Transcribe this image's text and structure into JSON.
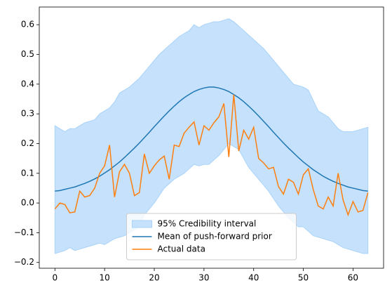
{
  "chart_data": {
    "type": "line",
    "x": [
      0,
      1,
      2,
      3,
      4,
      5,
      6,
      7,
      8,
      9,
      10,
      11,
      12,
      13,
      14,
      15,
      16,
      17,
      18,
      19,
      20,
      21,
      22,
      23,
      24,
      25,
      26,
      27,
      28,
      29,
      30,
      31,
      32,
      33,
      34,
      35,
      36,
      37,
      38,
      39,
      40,
      41,
      42,
      43,
      44,
      45,
      46,
      47,
      48,
      49,
      50,
      51,
      52,
      53,
      54,
      55,
      56,
      57,
      58,
      59,
      60,
      61,
      62,
      63
    ],
    "band": {
      "name": "95% Credibility interval",
      "color": "#c5e1fb",
      "edge_color": "#a9d3fa",
      "upper": [
        0.26,
        0.25,
        0.24,
        0.25,
        0.25,
        0.26,
        0.27,
        0.275,
        0.28,
        0.3,
        0.31,
        0.32,
        0.34,
        0.37,
        0.38,
        0.39,
        0.405,
        0.42,
        0.44,
        0.46,
        0.48,
        0.5,
        0.515,
        0.53,
        0.545,
        0.56,
        0.57,
        0.58,
        0.6,
        0.59,
        0.6,
        0.605,
        0.61,
        0.61,
        0.615,
        0.62,
        0.61,
        0.595,
        0.58,
        0.565,
        0.55,
        0.535,
        0.52,
        0.5,
        0.48,
        0.46,
        0.44,
        0.42,
        0.4,
        0.395,
        0.39,
        0.38,
        0.345,
        0.31,
        0.3,
        0.29,
        0.27,
        0.25,
        0.24,
        0.24,
        0.24,
        0.245,
        0.25,
        0.255
      ],
      "lower": [
        -0.17,
        -0.165,
        -0.16,
        -0.15,
        -0.16,
        -0.155,
        -0.15,
        -0.145,
        -0.14,
        -0.135,
        -0.14,
        -0.13,
        -0.12,
        -0.115,
        -0.11,
        -0.1,
        -0.09,
        -0.08,
        -0.04,
        -0.02,
        0.0,
        0.025,
        0.05,
        0.065,
        0.08,
        0.09,
        0.1,
        0.115,
        0.13,
        0.125,
        0.13,
        0.13,
        0.145,
        0.16,
        0.18,
        0.2,
        0.19,
        0.18,
        0.15,
        0.12,
        0.1,
        0.08,
        0.06,
        0.04,
        0.015,
        -0.01,
        -0.03,
        -0.05,
        -0.065,
        -0.08,
        -0.08,
        -0.095,
        -0.11,
        -0.115,
        -0.12,
        -0.125,
        -0.13,
        -0.14,
        -0.15,
        -0.155,
        -0.16,
        -0.165,
        -0.17,
        -0.17
      ]
    },
    "series": [
      {
        "name": "Mean of push-forward prior",
        "color": "#1f77b4",
        "values": [
          0.04,
          0.042,
          0.046,
          0.05,
          0.054,
          0.06,
          0.066,
          0.073,
          0.081,
          0.09,
          0.101,
          0.112,
          0.125,
          0.138,
          0.153,
          0.169,
          0.185,
          0.202,
          0.22,
          0.238,
          0.257,
          0.275,
          0.293,
          0.31,
          0.326,
          0.341,
          0.354,
          0.365,
          0.375,
          0.382,
          0.387,
          0.39,
          0.39,
          0.387,
          0.382,
          0.375,
          0.365,
          0.354,
          0.341,
          0.326,
          0.31,
          0.293,
          0.275,
          0.257,
          0.238,
          0.22,
          0.202,
          0.185,
          0.169,
          0.153,
          0.138,
          0.125,
          0.112,
          0.101,
          0.09,
          0.081,
          0.073,
          0.066,
          0.06,
          0.054,
          0.05,
          0.046,
          0.042,
          0.04
        ]
      },
      {
        "name": "Actual data",
        "color": "#ff7f0e",
        "values": [
          -0.02,
          0.0,
          -0.005,
          -0.033,
          -0.03,
          0.04,
          0.02,
          0.025,
          0.05,
          0.1,
          0.125,
          0.195,
          0.02,
          0.105,
          0.13,
          0.1,
          0.025,
          0.035,
          0.165,
          0.1,
          0.125,
          0.145,
          0.158,
          0.08,
          0.195,
          0.19,
          0.235,
          0.255,
          0.273,
          0.195,
          0.26,
          0.245,
          0.27,
          0.29,
          0.335,
          0.155,
          0.365,
          0.175,
          0.245,
          0.215,
          0.255,
          0.15,
          0.135,
          0.115,
          0.12,
          0.055,
          0.03,
          0.08,
          0.07,
          0.03,
          0.095,
          0.115,
          0.045,
          -0.01,
          -0.02,
          0.02,
          -0.01,
          0.1,
          0.01,
          -0.04,
          0.005,
          -0.03,
          -0.025,
          0.035
        ]
      }
    ],
    "xlim": [
      -3.15,
      66.15
    ],
    "xticks": [
      0,
      10,
      20,
      30,
      40,
      50,
      60
    ],
    "ylim": [
      -0.2195,
      0.6595
    ],
    "yticks": [
      {
        "value": -0.2,
        "label": "−0.2"
      },
      {
        "value": -0.1,
        "label": "−0.1"
      },
      {
        "value": 0.0,
        "label": "0.0"
      },
      0.1,
      0.2,
      0.3,
      0.4,
      0.5,
      0.6
    ],
    "legend": "lower center"
  }
}
